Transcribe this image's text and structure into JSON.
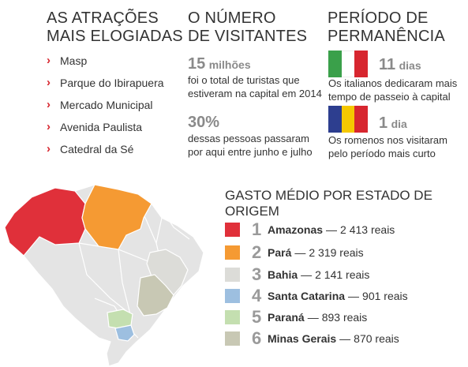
{
  "attractions": {
    "title_line1": "AS ATRAÇÕES",
    "title_line2": "MAIS ELOGIADAS",
    "items": [
      {
        "label": "Masp"
      },
      {
        "label": "Parque do Ibirapuera"
      },
      {
        "label": "Mercado Municipal"
      },
      {
        "label": "Avenida Paulista"
      },
      {
        "label": "Catedral da Sé"
      }
    ]
  },
  "visitors": {
    "title_line1": "O NÚMERO",
    "title_line2": "DE VISITANTES",
    "stat1": {
      "number": "15",
      "unit": "milhões",
      "line1": "foi o total de turistas que",
      "line2": "estiveram na capital em 2014"
    },
    "stat2": {
      "number": "30%",
      "line1": "dessas pessoas passaram",
      "line2": "por aqui entre junho e julho"
    }
  },
  "stay": {
    "title_line1": "PERÍODO DE",
    "title_line2": "PERMANÊNCIA",
    "italy": {
      "number": "11",
      "unit": "dias",
      "line1": "Os italianos dedicaram mais",
      "line2": "tempo de passeio à capital",
      "colors": [
        "#3aa04a",
        "#ffffff",
        "#d7262f"
      ]
    },
    "romania": {
      "number": "1",
      "unit": "dia",
      "line1": "Os romenos nos visitaram",
      "line2": "pelo período mais curto",
      "colors": [
        "#2d3e8f",
        "#f5c800",
        "#d7262f"
      ]
    }
  },
  "spending": {
    "title": "GASTO MÉDIO POR ESTADO DE ORIGEM",
    "rows": [
      {
        "rank": "1",
        "state": "Amazonas",
        "amount": "2 413 reais",
        "color": "#e0303a"
      },
      {
        "rank": "2",
        "state": "Pará",
        "amount": "2 319 reais",
        "color": "#f59a33"
      },
      {
        "rank": "3",
        "state": "Bahia",
        "amount": "2 141 reais",
        "color": "#dcdcd8"
      },
      {
        "rank": "4",
        "state": "Santa Catarina",
        "amount": "901 reais",
        "color": "#9dbfe0"
      },
      {
        "rank": "5",
        "state": "Paraná",
        "amount": "893 reais",
        "color": "#c4dfb0"
      },
      {
        "rank": "6",
        "state": "Minas Gerais",
        "amount": "870 reais",
        "color": "#c8c8b4"
      }
    ],
    "dash": "—"
  },
  "colors": {
    "accent_red": "#d7262f",
    "map_base": "#e4e4e4",
    "map_border": "#ffffff"
  },
  "icons": {
    "bullet": "chevron-right-icon"
  }
}
